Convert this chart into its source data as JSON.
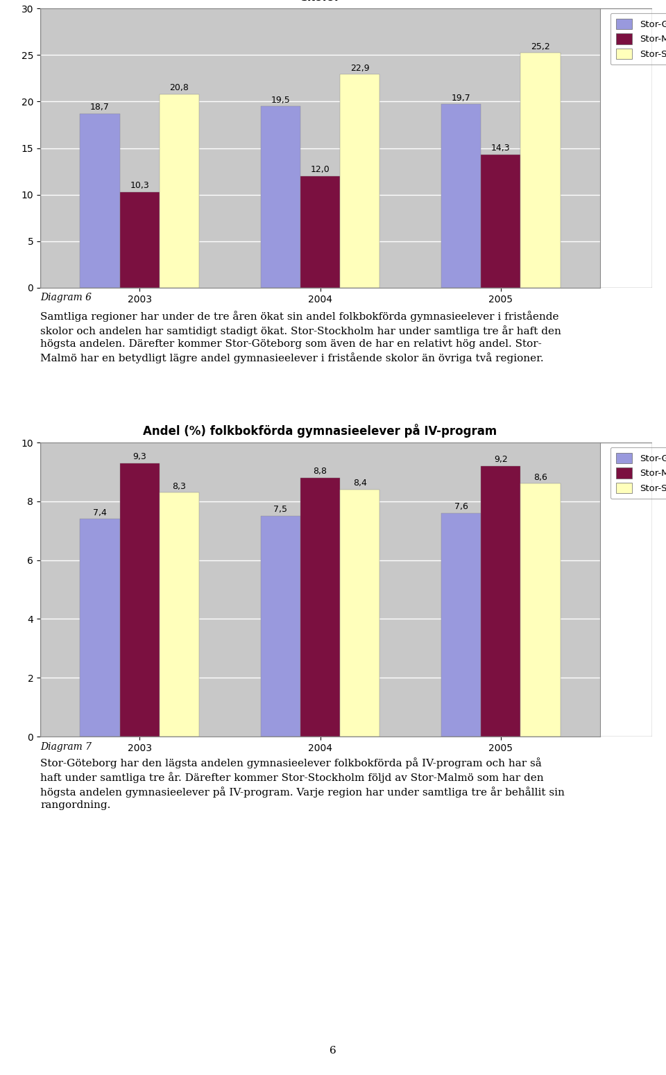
{
  "chart1": {
    "title": "Andel (%) folkbokförda gymnasieelever i fristående\nskolor",
    "years": [
      "2003",
      "2004",
      "2005"
    ],
    "stor_g": [
      18.7,
      19.5,
      19.7
    ],
    "stor_m": [
      10.3,
      12.0,
      14.3
    ],
    "stor_s": [
      20.8,
      22.9,
      25.2
    ],
    "ylim": [
      0,
      30
    ],
    "yticks": [
      0,
      5,
      10,
      15,
      20,
      25,
      30
    ],
    "color_g": "#9999DD",
    "color_m": "#7B1040",
    "color_s": "#FFFFBB",
    "diagram_label": "Diagram 6"
  },
  "chart2": {
    "title": "Andel (%) folkbokförda gymnasieelever på IV-program",
    "years": [
      "2003",
      "2004",
      "2005"
    ],
    "stor_g": [
      7.4,
      7.5,
      7.6
    ],
    "stor_m": [
      9.3,
      8.8,
      9.2
    ],
    "stor_s": [
      8.3,
      8.4,
      8.6
    ],
    "ylim": [
      0,
      10
    ],
    "yticks": [
      0,
      2,
      4,
      6,
      8,
      10
    ],
    "color_g": "#9999DD",
    "color_m": "#7B1040",
    "color_s": "#FFFFBB",
    "diagram_label": "Diagram 7"
  },
  "text1_lines": [
    "Samtliga regioner har under de tre åren ökat sin andel folkbokförda gymnasieelever i fristående",
    "skolor och andelen har samtidigt stadigt ökat. Stor-Stockholm har under samtliga tre år haft den",
    "högsta andelen. Därefter kommer Stor-Göteborg som även de har en relativt hög andel. Stor-",
    "Malmö har en betydligt lägre andel gymnasieelever i fristående skolor än övriga två regioner."
  ],
  "text2_lines": [
    "Stor-Göteborg har den lägsta andelen gymnasieelever folkbokförda på IV-program och har så",
    "haft under samtliga tre år. Därefter kommer Stor-Stockholm följd av Stor-Malmö som har den",
    "högsta andelen gymnasieelever på IV-program. Varje region har under samtliga tre år behållit sin",
    "rangordning."
  ],
  "legend_labels": [
    "Stor-G",
    "Stor-M",
    "Stor-S"
  ],
  "chart_bg": "#C8C8C8",
  "page_bg": "#FFFFFF",
  "bar_width": 0.22,
  "page_number": "6",
  "label_fontsize": 9,
  "tick_fontsize": 10,
  "title_fontsize": 12,
  "text_fontsize": 11
}
